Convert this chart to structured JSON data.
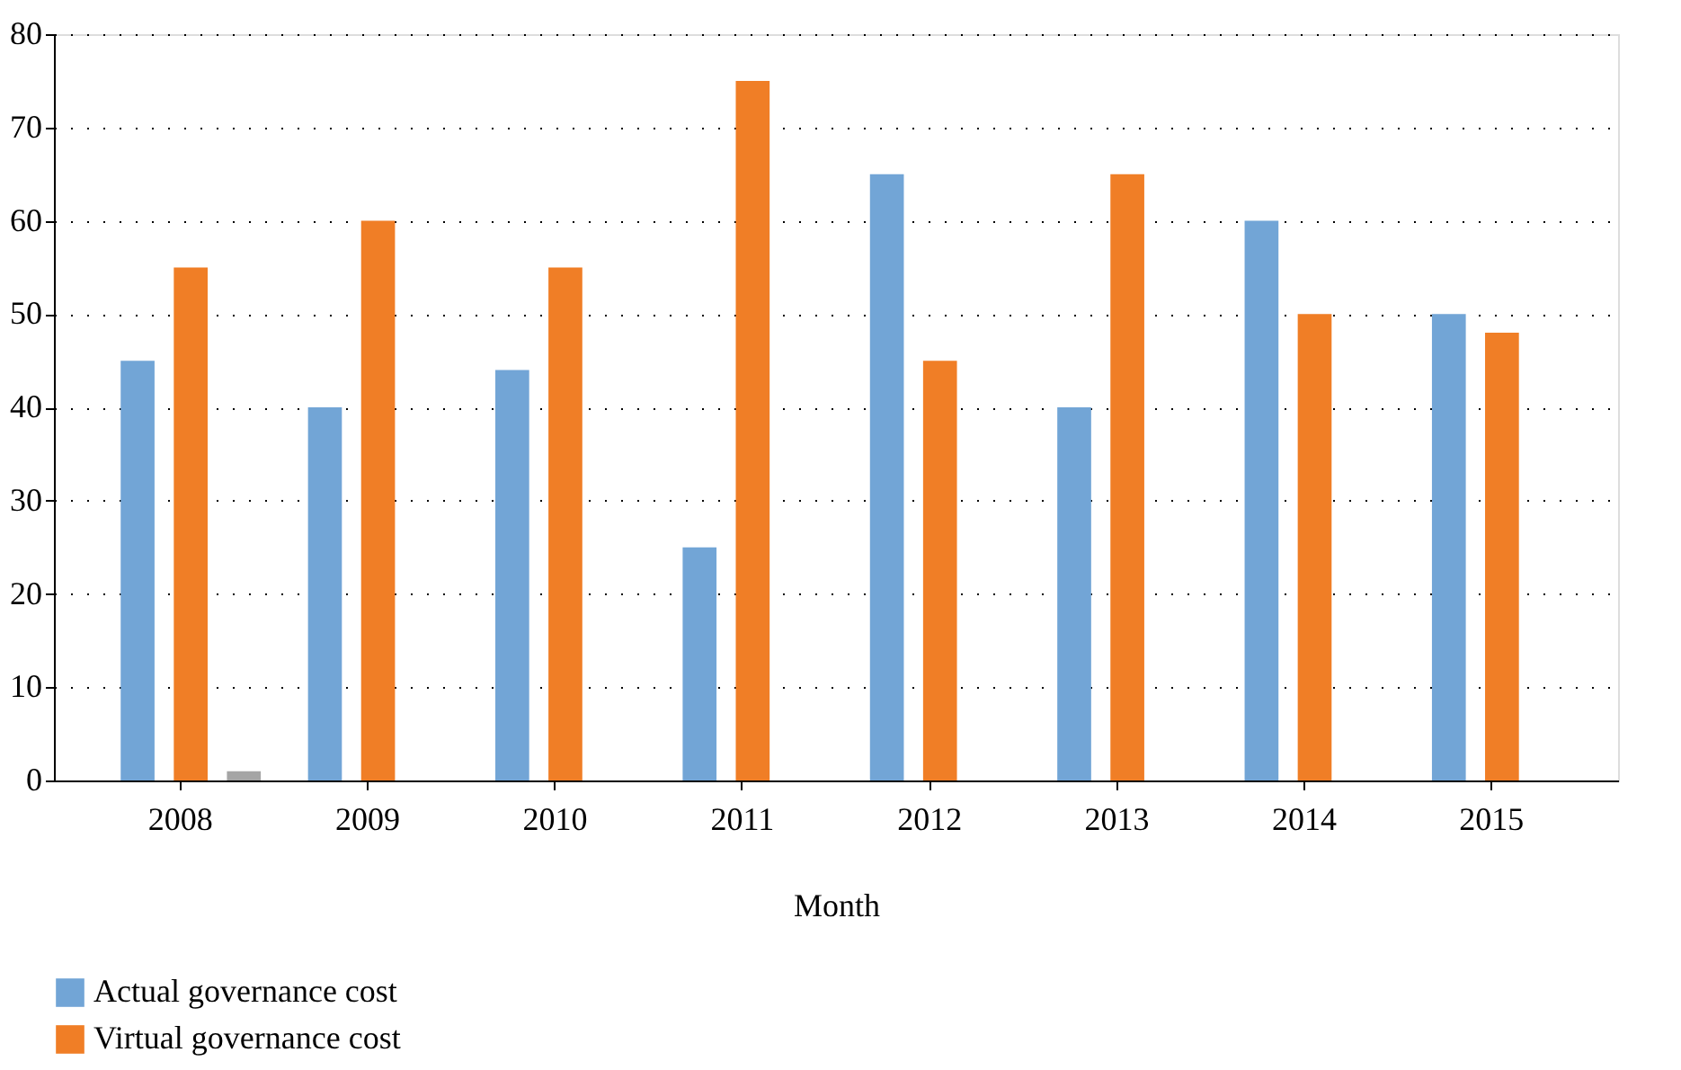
{
  "chart_data": {
    "type": "bar",
    "xlabel": "Month",
    "categories": [
      "2008",
      "2009",
      "2010",
      "2011",
      "2012",
      "2013",
      "2014",
      "2015"
    ],
    "series": [
      {
        "name": "Actual governance cost",
        "color": "#72a5d6",
        "values": [
          45,
          40,
          44,
          25,
          65,
          40,
          60,
          50
        ]
      },
      {
        "name": "Virtual governance cost",
        "color": "#f07e26",
        "values": [
          55,
          60,
          55,
          75,
          45,
          65,
          50,
          48
        ]
      },
      {
        "color": "#a5a5a5",
        "values": [
          1,
          null,
          null,
          null,
          null,
          null,
          null,
          null
        ]
      }
    ],
    "ylim": [
      0,
      80
    ],
    "yticks": [
      0,
      10,
      20,
      30,
      40,
      50,
      60,
      70,
      80
    ],
    "grid": "y",
    "legend": "bottom left"
  }
}
